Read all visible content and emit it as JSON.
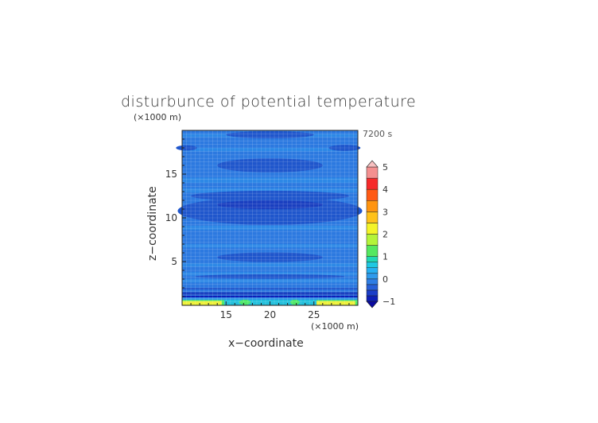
{
  "chart_data": {
    "type": "heatmap",
    "title": "disturbunce of potential temperature",
    "time_label": "7200 s",
    "xlabel": "x−coordinate",
    "ylabel": "z−coordinate",
    "x_unit": "(×1000 m)",
    "y_unit": "(×1000 m)",
    "xlim": [
      10,
      30
    ],
    "ylim": [
      0,
      20
    ],
    "x_ticks": [
      15,
      20,
      25
    ],
    "x_tick_labels": [
      "15",
      "20",
      "25"
    ],
    "y_ticks": [
      5,
      10,
      15
    ],
    "y_tick_labels": [
      "5",
      "10",
      "15"
    ],
    "grid": true,
    "colorbar": {
      "range": [
        -1,
        5
      ],
      "tick_values": [
        -1,
        0,
        1,
        2,
        3,
        4,
        5
      ],
      "tick_labels": [
        "−1",
        "0",
        "1",
        "2",
        "3",
        "4",
        "5"
      ],
      "levels": [
        {
          "from": -1.0,
          "to": -0.75,
          "color": "#0d1fb8"
        },
        {
          "from": -0.75,
          "to": -0.5,
          "color": "#1b3ec8"
        },
        {
          "from": -0.5,
          "to": -0.25,
          "color": "#2760d8"
        },
        {
          "from": -0.25,
          "to": 0.0,
          "color": "#2f7ee4"
        },
        {
          "from": 0.0,
          "to": 0.25,
          "color": "#2f9aec"
        },
        {
          "from": 0.25,
          "to": 0.5,
          "color": "#27b0f2"
        },
        {
          "from": 0.5,
          "to": 0.75,
          "color": "#1fc8e2"
        },
        {
          "from": 0.75,
          "to": 1.0,
          "color": "#21d8b4"
        },
        {
          "from": 1.0,
          "to": 1.5,
          "color": "#55e860"
        },
        {
          "from": 1.5,
          "to": 2.0,
          "color": "#b4f43a"
        },
        {
          "from": 2.0,
          "to": 2.5,
          "color": "#f4f428"
        },
        {
          "from": 2.5,
          "to": 3.0,
          "color": "#ffc21a"
        },
        {
          "from": 3.0,
          "to": 3.5,
          "color": "#ff9410"
        },
        {
          "from": 3.5,
          "to": 4.0,
          "color": "#ff5a14"
        },
        {
          "from": 4.0,
          "to": 4.5,
          "color": "#f62a2a"
        },
        {
          "from": 4.5,
          "to": 5.0,
          "color": "#f49090"
        }
      ],
      "under_color": "#0a0aa0",
      "over_color": "#f8c0c0"
    },
    "fields": {
      "background_value": -0.4,
      "background_color": "#2c79e0",
      "darker_color": "#1f56cc",
      "darkest_color": "#1a3fc0",
      "light_color": "#2e8fe8",
      "cyan_color": "#22c0dc",
      "green_color": "#4ee868",
      "yellow_color": "#eef23a",
      "regions": [
        {
          "name": "upper-bands",
          "z_range": [
            18,
            20
          ],
          "value": -0.6
        },
        {
          "name": "band-z16",
          "z_range": [
            15.2,
            16.8
          ],
          "value": -0.6
        },
        {
          "name": "band-z11",
          "z_range": [
            9.2,
            12.8
          ],
          "value": -0.7
        },
        {
          "name": "band-z5.5",
          "z_range": [
            5.0,
            6.0
          ],
          "value": -0.6
        },
        {
          "name": "stripe-z1.5",
          "z_range": [
            1.2,
            2.0
          ],
          "value": -0.8
        },
        {
          "name": "surface-yellow-left",
          "x_range": [
            10,
            14.5
          ],
          "z_range": [
            0,
            0.6
          ],
          "value": 2.2
        },
        {
          "name": "surface-yellow-right",
          "x_range": [
            25.5,
            30
          ],
          "z_range": [
            0,
            0.6
          ],
          "value": 2.2
        }
      ]
    }
  }
}
